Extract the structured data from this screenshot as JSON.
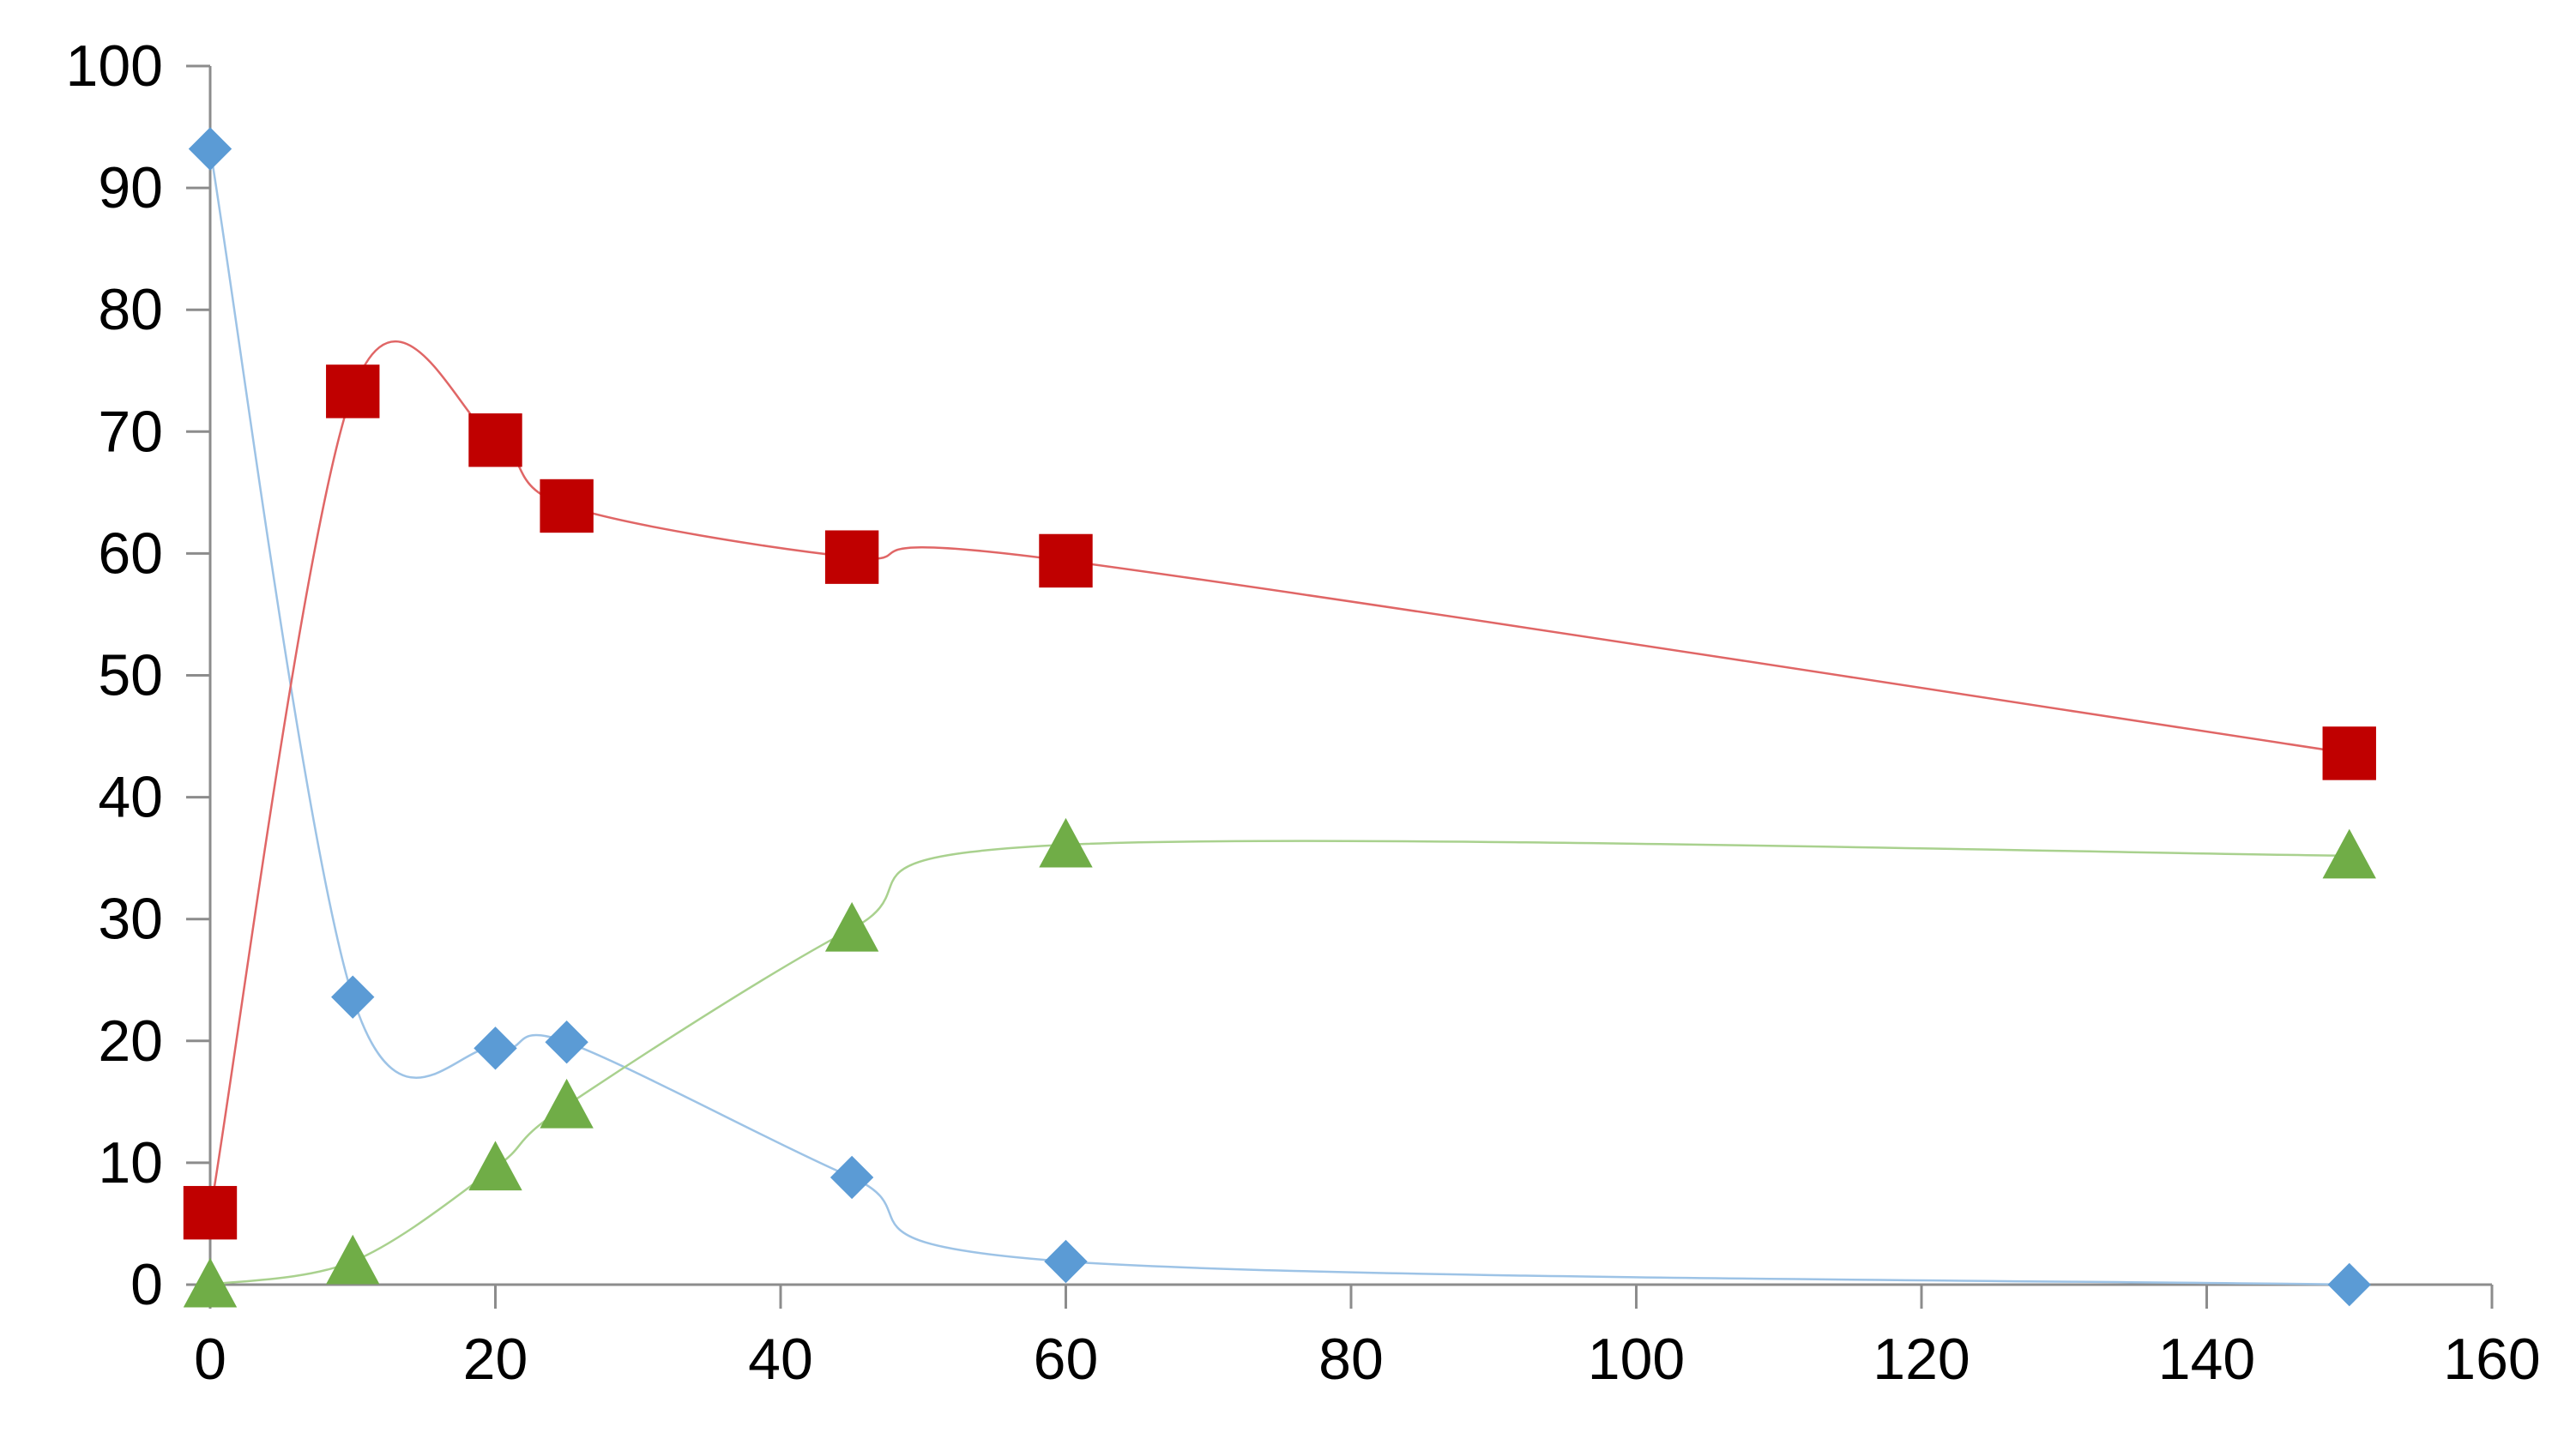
{
  "chart_data": {
    "type": "scatter",
    "title": "",
    "xlabel": "",
    "ylabel": "",
    "xlim": [
      0,
      160
    ],
    "ylim": [
      0,
      100
    ],
    "x_ticks": [
      0,
      20,
      40,
      60,
      80,
      100,
      120,
      140,
      160
    ],
    "y_ticks": [
      0,
      10,
      20,
      30,
      40,
      50,
      60,
      70,
      80,
      90,
      100
    ],
    "x_tick_labels": [
      "0",
      "20",
      "40",
      "60",
      "80",
      "100",
      "120",
      "140",
      "160"
    ],
    "y_tick_labels": [
      "0",
      "10",
      "20",
      "30",
      "40",
      "50",
      "60",
      "70",
      "80",
      "90",
      "100"
    ],
    "grid": false,
    "legend": "none",
    "smoothed_lines": true,
    "axis_color": "#8c8c8c",
    "series": [
      {
        "marker": "diamond",
        "color": "#5b9bd5",
        "line_color": "#9dc3e6",
        "x": [
          0,
          10,
          20,
          25,
          45,
          60,
          150
        ],
        "y": [
          93.2,
          23.6,
          19.4,
          19.9,
          8.8,
          1.9,
          0.0
        ]
      },
      {
        "marker": "square",
        "color": "#c00000",
        "line_color": "#e06666",
        "x": [
          0,
          10,
          20,
          25,
          45,
          60,
          150
        ],
        "y": [
          5.9,
          73.3,
          69.3,
          63.9,
          59.7,
          59.4,
          43.6
        ]
      },
      {
        "marker": "triangle",
        "color": "#70ad47",
        "line_color": "#a9d18e",
        "x": [
          0,
          10,
          20,
          25,
          45,
          60,
          150
        ],
        "y": [
          0.0,
          1.9,
          9.6,
          14.7,
          29.2,
          36.1,
          35.2
        ]
      }
    ]
  }
}
